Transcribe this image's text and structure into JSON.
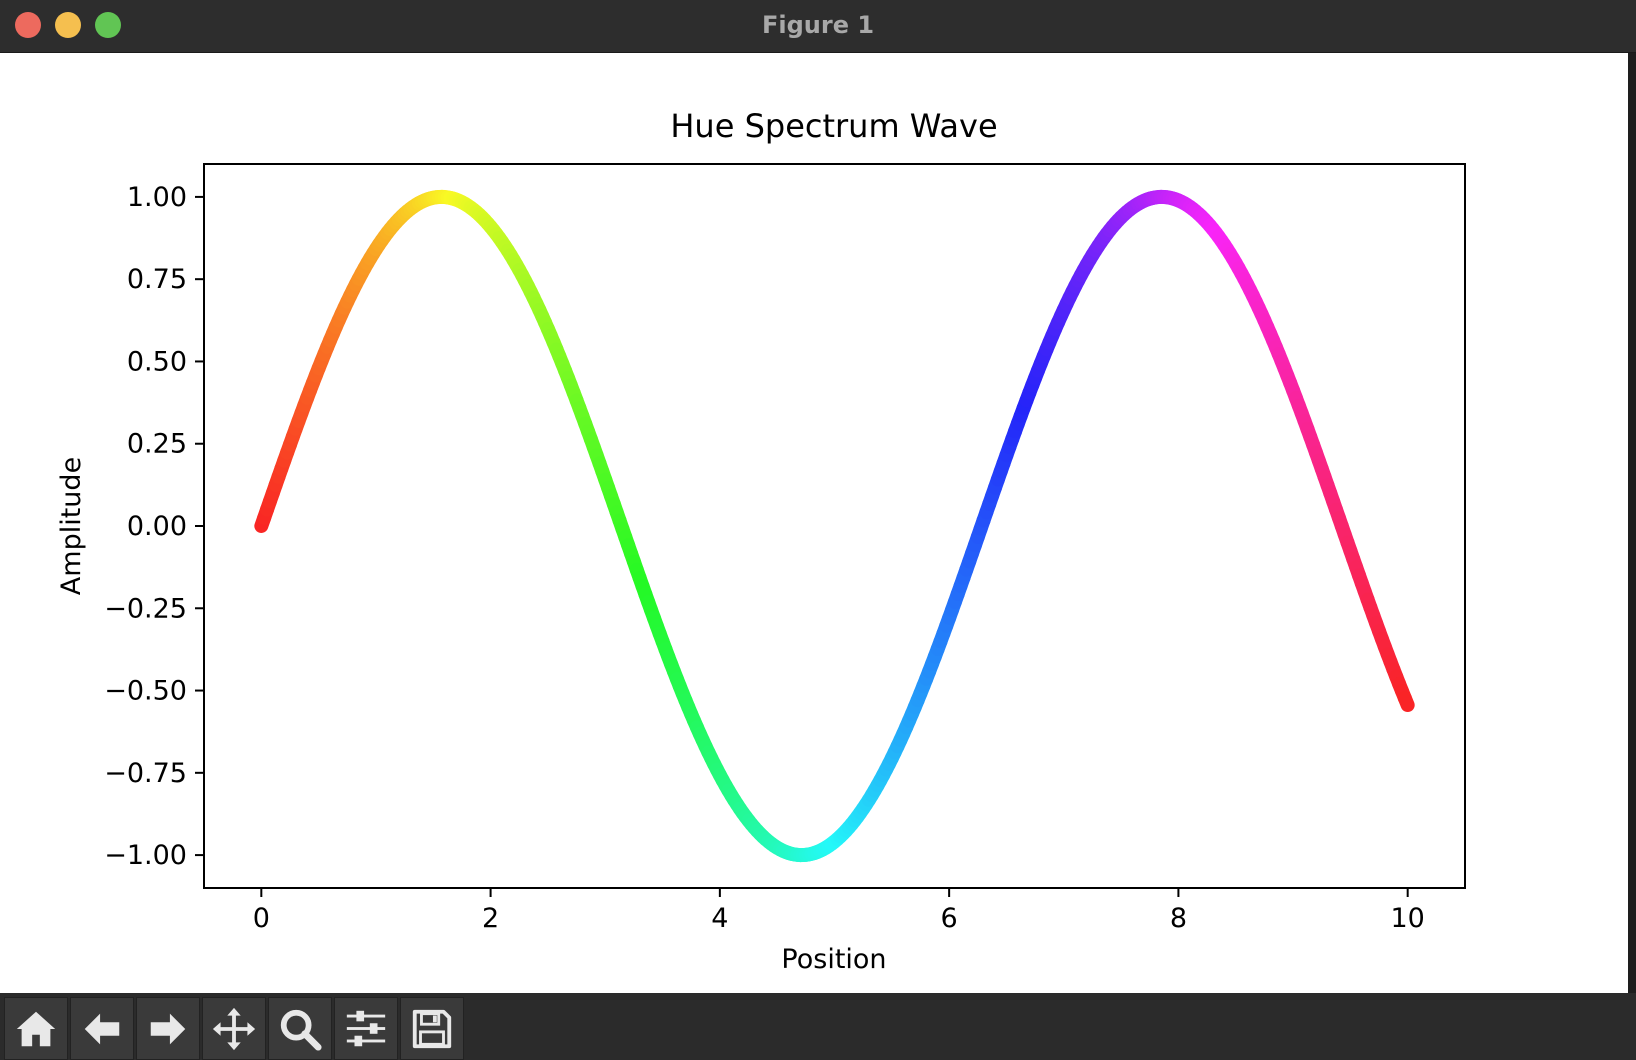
{
  "window": {
    "title": "Figure 1"
  },
  "toolbar": {
    "buttons": [
      {
        "name": "home",
        "icon": "home-icon"
      },
      {
        "name": "back",
        "icon": "arrow-left-icon"
      },
      {
        "name": "forward",
        "icon": "arrow-right-icon"
      },
      {
        "name": "pan",
        "icon": "move-icon"
      },
      {
        "name": "zoom",
        "icon": "magnifier-icon"
      },
      {
        "name": "configure-subplots",
        "icon": "sliders-icon"
      },
      {
        "name": "save",
        "icon": "floppy-disk-icon"
      }
    ]
  },
  "chart_data": {
    "type": "line",
    "title": "Hue Spectrum Wave",
    "xlabel": "Position",
    "ylabel": "Amplitude",
    "function": "sin(x)",
    "x_range": [
      0,
      10
    ],
    "xlim": [
      -0.5,
      10.5
    ],
    "ylim": [
      -1.1,
      1.1
    ],
    "xticks": [
      0,
      2,
      4,
      6,
      8,
      10
    ],
    "xtick_labels": [
      "0",
      "2",
      "4",
      "6",
      "8",
      "10"
    ],
    "yticks": [
      1.0,
      0.75,
      0.5,
      0.25,
      0.0,
      -0.25,
      -0.5,
      -0.75,
      -1.0
    ],
    "ytick_labels": [
      "1.00",
      "0.75",
      "0.50",
      "0.25",
      "0.00",
      "−0.25",
      "−0.50",
      "−0.75",
      "−1.00"
    ],
    "color_mapping": "hue varies along x from red (x=0) through yellow, green, cyan, blue, magenta, back to red (x=10)",
    "x": [
      0,
      1,
      1.57,
      2,
      3,
      4,
      4.71,
      5,
      6,
      7,
      7.85,
      8,
      9,
      10
    ],
    "y": [
      0.0,
      0.841,
      1.0,
      0.909,
      0.141,
      -0.757,
      -1.0,
      -0.959,
      -0.279,
      0.657,
      1.0,
      0.989,
      0.412,
      -0.544
    ],
    "grid": false,
    "legend": false
  }
}
